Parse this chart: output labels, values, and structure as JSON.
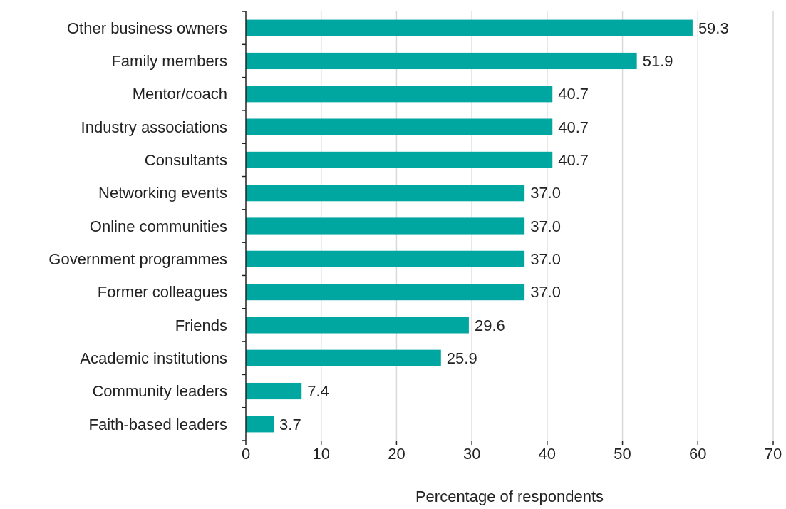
{
  "chart_data": {
    "type": "bar",
    "orientation": "horizontal",
    "xlabel": "Percentage of respondents",
    "categories": [
      "Other business owners",
      "Family members",
      "Mentor/coach",
      "Industry associations",
      "Consultants",
      "Networking events",
      "Online communities",
      "Government programmes",
      "Former colleagues",
      "Friends",
      "Academic institutions",
      "Community leaders",
      "Faith-based leaders"
    ],
    "values": [
      59.3,
      51.9,
      40.7,
      40.7,
      40.7,
      37.0,
      37.0,
      37.0,
      37.0,
      29.6,
      25.9,
      7.4,
      3.7
    ],
    "value_labels": [
      "59.3",
      "51.9",
      "40.7",
      "40.7",
      "40.7",
      "37.0",
      "37.0",
      "37.0",
      "37.0",
      "29.6",
      "25.9",
      "7.4",
      "3.7"
    ],
    "color": "#00a6a0",
    "xlim": [
      0,
      70
    ],
    "xticks": [
      0,
      10,
      20,
      30,
      40,
      50,
      60,
      70
    ],
    "grid": "x"
  }
}
